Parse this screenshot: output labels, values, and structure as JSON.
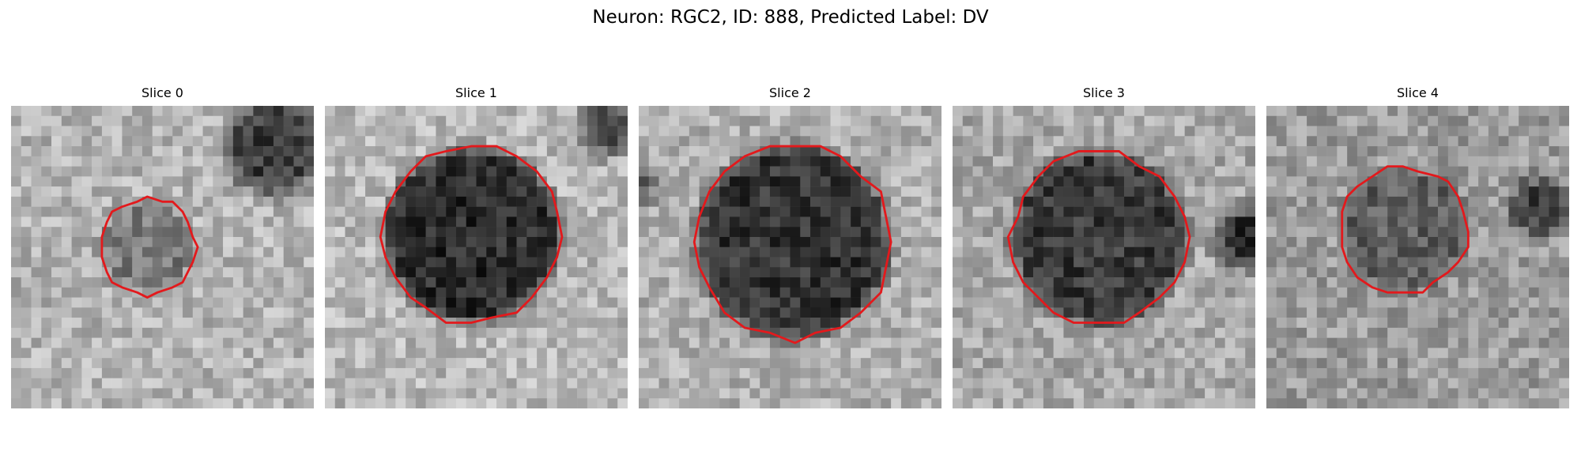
{
  "figure": {
    "title": "Neuron: RGC2, ID: 888, Predicted Label: DV",
    "contour_color": "#e3191c"
  },
  "panels": [
    {
      "title": "Slice 0",
      "bg": "#b4b4b4",
      "spot": "#7a7a7a",
      "dark": "#3c3c3c"
    },
    {
      "title": "Slice 1",
      "bg": "#b8b8b8",
      "spot": "#2c2c2c",
      "dark": "#4a4a4a"
    },
    {
      "title": "Slice 2",
      "bg": "#b0b0b0",
      "spot": "#333333",
      "dark": "#5a5a5a"
    },
    {
      "title": "Slice 3",
      "bg": "#a8a8a8",
      "spot": "#3a3a3a",
      "dark": "#2f2f2f"
    },
    {
      "title": "Slice 4",
      "bg": "#9c9c9c",
      "spot": "#5e5e5e",
      "dark": "#3e3e3e"
    }
  ]
}
